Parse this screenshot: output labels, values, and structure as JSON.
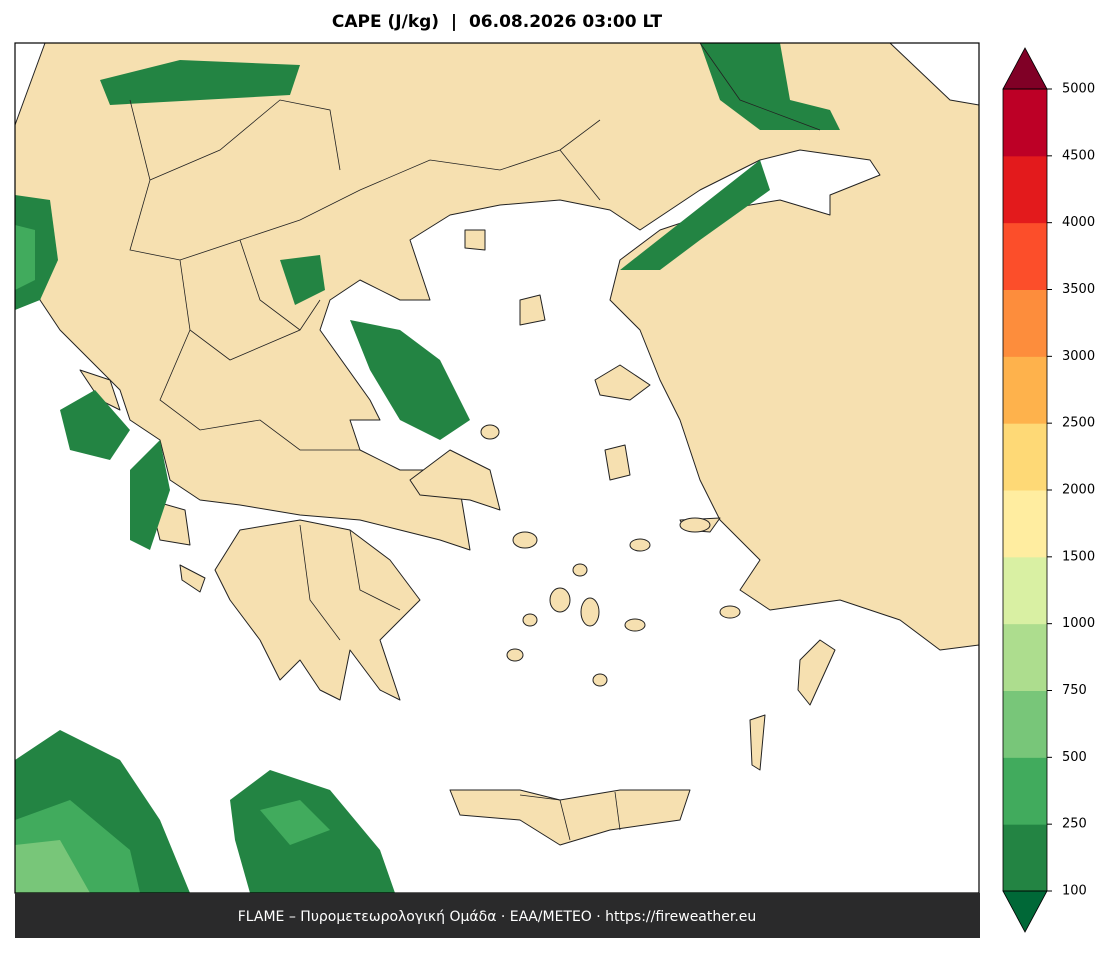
{
  "title": "CAPE (J/kg)  |  06.08.2026 03:00 LT",
  "footer": "FLAME – Πυρομετεωρολογική Ομάδα · ΕΑΑ/METEO · https://fireweather.eu",
  "colorbar": {
    "ticks": [
      100,
      250,
      500,
      750,
      1000,
      1500,
      2000,
      2500,
      3000,
      3500,
      4000,
      4500,
      5000
    ],
    "colors": [
      "#238443",
      "#41ab5d",
      "#78c679",
      "#addd8e",
      "#d9f0a3",
      "#ffeda0",
      "#fed976",
      "#feb24c",
      "#fd8d3c",
      "#fc4e2a",
      "#e31a1c",
      "#bd0026"
    ],
    "under_color": "#006837",
    "over_color": "#800026"
  }
}
